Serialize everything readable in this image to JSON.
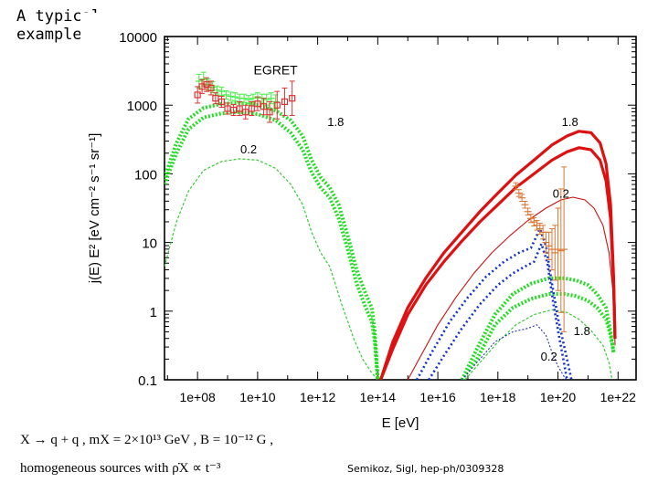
{
  "slide": {
    "label_line1": "A typical",
    "label_line2": "example:",
    "formula_text": "X → q + q , mX = 2×10¹³ GeV , B = 10⁻¹² G ,",
    "sources_text": "homogeneous sources with ρ̇X ∝ t⁻³",
    "citation": "Semikoz, Sigl, hep-ph/0309328"
  },
  "chart_data": {
    "type": "line",
    "title": "",
    "xlabel": "E [eV]",
    "ylabel": "j(E) E² [eV cm⁻² s⁻¹ sr⁻¹]",
    "xscale": "log",
    "yscale": "log",
    "xlim_log10": [
      6.9,
      22.6
    ],
    "ylim_log10": [
      -1,
      4
    ],
    "x_ticks": [
      {
        "exp": 8,
        "label": "1e+08"
      },
      {
        "exp": 10,
        "label": "1e+10"
      },
      {
        "exp": 12,
        "label": "1e+12"
      },
      {
        "exp": 14,
        "label": "1e+14"
      },
      {
        "exp": 16,
        "label": "1e+16"
      },
      {
        "exp": 18,
        "label": "1e+18"
      },
      {
        "exp": 20,
        "label": "1e+20"
      },
      {
        "exp": 22,
        "label": "1e+22"
      }
    ],
    "y_ticks": [
      {
        "exp": 4,
        "label": "10000"
      },
      {
        "exp": 3,
        "label": "1000"
      },
      {
        "exp": 2,
        "label": "100"
      },
      {
        "exp": 1,
        "label": "10"
      },
      {
        "exp": 0,
        "label": "1"
      },
      {
        "exp": -1,
        "label": "0.1"
      }
    ],
    "annotations": [
      {
        "text": "EGRET",
        "x_log10": 10.6,
        "y_log10": 3.45,
        "size": 14
      },
      {
        "text": "1.8",
        "x_log10": 12.6,
        "y_log10": 2.7,
        "size": 13
      },
      {
        "text": "0.2",
        "x_log10": 9.7,
        "y_log10": 2.3,
        "size": 13
      },
      {
        "text": "1.8",
        "x_log10": 20.4,
        "y_log10": 2.7,
        "size": 13
      },
      {
        "text": "0.2",
        "x_log10": 20.1,
        "y_log10": 1.65,
        "size": 13
      },
      {
        "text": "1.8",
        "x_log10": 20.8,
        "y_log10": -0.35,
        "size": 13
      },
      {
        "text": "0.2",
        "x_log10": 19.7,
        "y_log10": -0.72,
        "size": 13
      }
    ],
    "series": [
      {
        "name": "gamma-1.8-upper",
        "color": "#22dd22",
        "width": 4,
        "dash": "2,2",
        "x": [
          6.9,
          7.3,
          7.7,
          8.2,
          8.8,
          9.4,
          10.0,
          10.6,
          11.1,
          11.5,
          11.8,
          12.1,
          12.4,
          12.7,
          13.0,
          13.3,
          13.6,
          13.8,
          13.9,
          14.0
        ],
        "y": [
          1.95,
          2.45,
          2.8,
          2.96,
          3.02,
          3.03,
          3.0,
          2.92,
          2.78,
          2.55,
          2.2,
          1.95,
          1.8,
          1.55,
          1.1,
          0.6,
          0.25,
          0.05,
          -0.3,
          -1.0
        ]
      },
      {
        "name": "gamma-1.8-lower",
        "color": "#22dd22",
        "width": 4,
        "dash": "2,2",
        "x": [
          6.9,
          7.3,
          7.7,
          8.2,
          8.8,
          9.4,
          10.0,
          10.6,
          11.1,
          11.5,
          11.8,
          12.1,
          12.4,
          12.7,
          13.0,
          13.3,
          13.6,
          13.8,
          13.9,
          14.0
        ],
        "y": [
          1.85,
          2.3,
          2.65,
          2.82,
          2.88,
          2.9,
          2.87,
          2.78,
          2.6,
          2.35,
          2.02,
          1.8,
          1.65,
          1.35,
          0.9,
          0.4,
          0.05,
          -0.15,
          -0.45,
          -1.0
        ]
      },
      {
        "name": "gamma-0.2-low",
        "color": "#33cc33",
        "width": 1.2,
        "dash": "3,2",
        "x": [
          6.9,
          7.3,
          7.7,
          8.2,
          8.8,
          9.4,
          10.0,
          10.6,
          11.1,
          11.5,
          11.8,
          12.1,
          12.4,
          12.8,
          13.2,
          13.5,
          13.8,
          14.0
        ],
        "y": [
          0.65,
          1.3,
          1.75,
          2.05,
          2.18,
          2.22,
          2.2,
          2.08,
          1.85,
          1.55,
          1.15,
          0.85,
          0.65,
          0.1,
          -0.4,
          -0.7,
          -0.9,
          -1.0
        ]
      },
      {
        "name": "gamma-0.2-high",
        "color": "#33cc33",
        "width": 1.2,
        "dash": "3,2",
        "x": [
          16.9,
          17.4,
          18.0,
          18.6,
          19.2,
          19.8,
          20.3,
          20.7,
          21.1,
          21.5,
          21.7,
          21.8
        ],
        "y": [
          -1.0,
          -0.75,
          -0.45,
          -0.2,
          -0.05,
          0.02,
          -0.02,
          -0.12,
          -0.28,
          -0.5,
          -0.75,
          -1.0
        ]
      },
      {
        "name": "gamma-1.8-high-upper",
        "color": "#22dd22",
        "width": 4,
        "dash": "2,2",
        "x": [
          16.8,
          17.3,
          17.9,
          18.5,
          19.1,
          19.7,
          20.2,
          20.6,
          21.0,
          21.3,
          21.6,
          21.75,
          21.85
        ],
        "y": [
          -1.0,
          -0.55,
          -0.05,
          0.25,
          0.4,
          0.48,
          0.48,
          0.45,
          0.38,
          0.25,
          0.05,
          -0.3,
          -0.6
        ]
      },
      {
        "name": "gamma-1.8-high-lower",
        "color": "#22dd22",
        "width": 4,
        "dash": "2,2",
        "x": [
          16.8,
          17.3,
          17.9,
          18.5,
          19.1,
          19.7,
          20.2,
          20.6,
          21.0,
          21.3,
          21.6,
          21.75,
          21.85
        ],
        "y": [
          -1.0,
          -0.7,
          -0.2,
          0.05,
          0.18,
          0.25,
          0.25,
          0.22,
          0.15,
          0.05,
          -0.12,
          -0.35,
          -0.6
        ]
      },
      {
        "name": "cr-1.8-a",
        "color": "#dd1111",
        "width": 3.2,
        "dash": "",
        "x": [
          14.1,
          14.5,
          15.0,
          15.6,
          16.2,
          16.8,
          17.4,
          18.0,
          18.6,
          19.2,
          19.8,
          20.3,
          20.7,
          21.1,
          21.4,
          21.6,
          21.75,
          21.85,
          21.9
        ],
        "y": [
          -1.0,
          -0.45,
          0.05,
          0.48,
          0.85,
          1.15,
          1.45,
          1.72,
          1.98,
          2.2,
          2.42,
          2.55,
          2.62,
          2.6,
          2.45,
          2.15,
          1.55,
          0.5,
          -0.4
        ]
      },
      {
        "name": "cr-1.8-b",
        "color": "#dd1111",
        "width": 3.2,
        "dash": "",
        "x": [
          14.1,
          14.5,
          15.0,
          15.6,
          16.2,
          16.8,
          17.4,
          18.0,
          18.6,
          19.2,
          19.8,
          20.3,
          20.7,
          21.1,
          21.4,
          21.6,
          21.75,
          21.85,
          21.9
        ],
        "y": [
          -1.0,
          -0.55,
          -0.05,
          0.38,
          0.72,
          1.02,
          1.3,
          1.55,
          1.8,
          2.0,
          2.2,
          2.32,
          2.38,
          2.35,
          2.2,
          1.9,
          1.35,
          0.4,
          -0.4
        ]
      },
      {
        "name": "cr-0.2",
        "color": "#cc1111",
        "width": 1.1,
        "dash": "",
        "x": [
          15.0,
          15.5,
          16.0,
          16.6,
          17.2,
          17.8,
          18.4,
          19.0,
          19.6,
          20.1,
          20.5,
          20.9,
          21.2,
          21.5,
          21.7,
          21.85,
          21.9
        ],
        "y": [
          -1.0,
          -0.6,
          -0.2,
          0.2,
          0.55,
          0.85,
          1.1,
          1.32,
          1.5,
          1.62,
          1.66,
          1.62,
          1.5,
          1.25,
          0.85,
          0.2,
          -0.5
        ]
      },
      {
        "name": "nu-1.8-a",
        "color": "#1133cc",
        "width": 2.6,
        "dash": "2,3",
        "x": [
          15.3,
          15.8,
          16.4,
          17.0,
          17.6,
          18.2,
          18.7,
          19.1,
          19.4,
          19.6,
          19.8,
          20.0,
          20.2,
          20.35,
          20.45
        ],
        "y": [
          -1.0,
          -0.6,
          -0.15,
          0.2,
          0.5,
          0.72,
          0.85,
          0.92,
          1.2,
          0.95,
          0.4,
          -0.1,
          -0.5,
          -0.8,
          -1.0
        ]
      },
      {
        "name": "nu-1.8-b",
        "color": "#1133cc",
        "width": 2.6,
        "dash": "2,3",
        "x": [
          15.7,
          16.2,
          16.8,
          17.4,
          18.0,
          18.5,
          18.9,
          19.2,
          19.45,
          19.65,
          19.85,
          20.05,
          20.2,
          20.3
        ],
        "y": [
          -1.0,
          -0.65,
          -0.25,
          0.1,
          0.38,
          0.55,
          0.65,
          0.72,
          0.98,
          0.7,
          0.1,
          -0.4,
          -0.75,
          -1.0
        ]
      },
      {
        "name": "nu-0.2",
        "color": "#2233aa",
        "width": 1.1,
        "dash": "2,2",
        "x": [
          16.8,
          17.3,
          17.9,
          18.5,
          19.0,
          19.3,
          19.6,
          19.8,
          20.0,
          20.2,
          20.3
        ],
        "y": [
          -1.0,
          -0.75,
          -0.45,
          -0.3,
          -0.25,
          -0.2,
          -0.35,
          -0.6,
          -0.8,
          -0.95,
          -1.0
        ]
      }
    ],
    "egret_points": {
      "color": "#dd3333",
      "x": [
        8.0,
        8.15,
        8.3,
        8.45,
        8.6,
        8.8,
        9.0,
        9.2,
        9.4,
        9.6,
        9.8,
        10.0,
        10.2,
        10.4,
        10.65,
        10.9,
        11.15
      ],
      "y": [
        3.15,
        3.27,
        3.3,
        3.25,
        3.1,
        3.05,
        2.95,
        2.93,
        2.95,
        2.9,
        2.95,
        3.02,
        2.98,
        2.9,
        3.0,
        3.05,
        3.1
      ],
      "err": [
        0.12,
        0.1,
        0.1,
        0.1,
        0.08,
        0.08,
        0.08,
        0.08,
        0.1,
        0.1,
        0.1,
        0.1,
        0.12,
        0.15,
        0.2,
        0.2,
        0.25
      ]
    },
    "egret_green_points": {
      "color": "#44ee44",
      "x": [
        8.05,
        8.2,
        8.35,
        8.5,
        8.65,
        8.8,
        8.95,
        9.1,
        9.25,
        9.4,
        9.55,
        9.7,
        9.85,
        10.0,
        10.15,
        10.3,
        10.45,
        10.6
      ],
      "y": [
        3.35,
        3.38,
        3.3,
        3.26,
        3.22,
        3.2,
        3.15,
        3.13,
        3.12,
        3.1,
        3.1,
        3.08,
        3.1,
        3.12,
        3.1,
        3.08,
        3.1,
        3.05
      ],
      "err": [
        0.1,
        0.1,
        0.08,
        0.08,
        0.06,
        0.06,
        0.06,
        0.06,
        0.06,
        0.06,
        0.06,
        0.06,
        0.06,
        0.06,
        0.06,
        0.08,
        0.08,
        0.1
      ]
    },
    "uhecr_points": {
      "color": "#dd7733",
      "x": [
        18.6,
        18.7,
        18.8,
        18.9,
        19.0,
        19.1,
        19.2,
        19.3,
        19.4,
        19.5,
        19.6,
        19.7,
        19.8,
        19.9,
        20.0,
        20.1,
        20.2
      ],
      "y": [
        1.82,
        1.72,
        1.65,
        1.55,
        1.45,
        1.35,
        1.3,
        1.25,
        1.2,
        1.15,
        1.0,
        0.95,
        0.9,
        0.85,
        0.9,
        0.88,
        0.9
      ],
      "err": [
        0.05,
        0.05,
        0.05,
        0.05,
        0.05,
        0.06,
        0.06,
        0.07,
        0.08,
        0.1,
        0.15,
        0.2,
        0.3,
        0.4,
        0.6,
        0.9,
        1.2
      ]
    }
  }
}
